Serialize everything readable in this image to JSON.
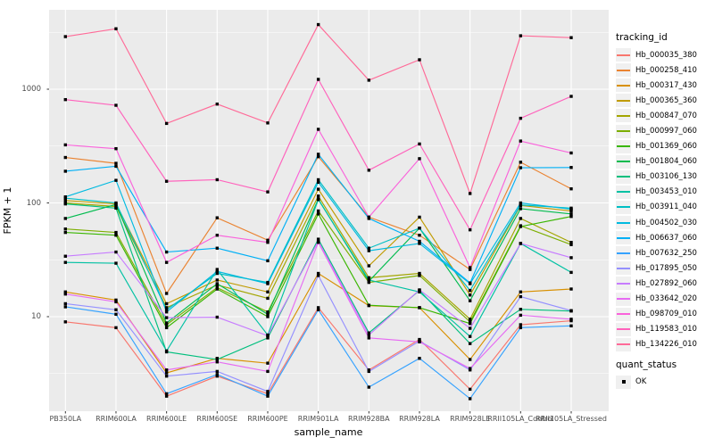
{
  "figure": {
    "background": "#FFFFFF",
    "panel_bg": "#EBEBEB",
    "grid_color": "#FFFFFF",
    "tick_color": "#333333",
    "tick_label_color": "#4D4D4D",
    "point_color": "#000000"
  },
  "chart_data": {
    "type": "line",
    "title": "",
    "xlabel": "sample_name",
    "ylabel": "FPKM + 1",
    "y_scale": "log10",
    "y_major_ticks": [
      10,
      100,
      1000
    ],
    "y_minor_ticks": [
      3.162,
      31.62,
      316.2,
      3162
    ],
    "ylim": [
      1.45,
      5100
    ],
    "grid": true,
    "legend_position": "right",
    "categories": [
      "PB350LA",
      "RRIM600LA",
      "RRIM600LE",
      "RRIM600SE",
      "RRIM600PE",
      "RRIM901LA",
      "RRIM928BA",
      "RRIM928LA",
      "RRIM928LE",
      "RRII105LA_Control",
      "RRII105LA_Stressed"
    ],
    "series": [
      {
        "name": "Hb_000035_380",
        "color": "#F8766D",
        "values": [
          9,
          8,
          2.0,
          3.0,
          2.1,
          12,
          3.4,
          6.3,
          2.3,
          8.5,
          9.2
        ]
      },
      {
        "name": "Hb_000258_410",
        "color": "#EA8331",
        "values": [
          251,
          223,
          16,
          74,
          47,
          255,
          75,
          52,
          26,
          228,
          133
        ]
      },
      {
        "name": "Hb_000317_430",
        "color": "#D89000",
        "values": [
          16.5,
          14,
          3.2,
          4.3,
          3.9,
          24,
          12.5,
          12,
          4.2,
          16.5,
          17.5
        ]
      },
      {
        "name": "Hb_000365_360",
        "color": "#C09B00",
        "values": [
          105,
          98,
          13,
          21,
          16.5,
          132,
          28,
          75,
          15.5,
          95,
          85
        ]
      },
      {
        "name": "Hb_000847_070",
        "color": "#A3A500",
        "values": [
          100,
          93,
          12,
          19,
          14.5,
          115,
          22,
          24,
          9.5,
          73,
          45
        ]
      },
      {
        "name": "Hb_000997_060",
        "color": "#7CAE00",
        "values": [
          59,
          55,
          8.5,
          18,
          11,
          85,
          20,
          23,
          9.0,
          63,
          43
        ]
      },
      {
        "name": "Hb_001369_060",
        "color": "#39B600",
        "values": [
          55,
          52,
          8.0,
          17.5,
          10,
          80,
          12.6,
          12,
          8.7,
          62,
          76
        ]
      },
      {
        "name": "Hb_001804_060",
        "color": "#00BB4E",
        "values": [
          73,
          97,
          8.8,
          19.5,
          10.5,
          108,
          20.5,
          60,
          13.8,
          89,
          80
        ]
      },
      {
        "name": "Hb_003106_130",
        "color": "#00BF7D",
        "values": [
          98,
          90,
          4.9,
          4.2,
          6.5,
          48,
          7.2,
          17,
          5.8,
          11.6,
          11.2
        ]
      },
      {
        "name": "Hb_003453_010",
        "color": "#00C1A3",
        "values": [
          30,
          29.5,
          5.0,
          26,
          6.9,
          107,
          21,
          16.5,
          6.7,
          44,
          24.5
        ]
      },
      {
        "name": "Hb_003911_040",
        "color": "#00BFC4",
        "values": [
          110,
          100,
          11.5,
          24,
          20,
          160,
          40,
          60,
          17,
          96,
          90
        ]
      },
      {
        "name": "Hb_004502_030",
        "color": "#00BAE0",
        "values": [
          113,
          158,
          11,
          25,
          19.5,
          152,
          38,
          44,
          19.5,
          100,
          88
        ]
      },
      {
        "name": "Hb_006637_060",
        "color": "#00B0F6",
        "values": [
          190,
          210,
          37,
          40,
          31,
          268,
          73,
          46,
          19.8,
          204,
          205
        ]
      },
      {
        "name": "Hb_007632_250",
        "color": "#35A2FF",
        "values": [
          12.2,
          10.5,
          2.1,
          3.1,
          2.0,
          11.5,
          2.4,
          4.3,
          1.9,
          8.0,
          8.3
        ]
      },
      {
        "name": "Hb_017895_050",
        "color": "#9590FF",
        "values": [
          13,
          11.5,
          3.0,
          3.3,
          2.2,
          23,
          3.3,
          6.1,
          3.4,
          15,
          11.3
        ]
      },
      {
        "name": "Hb_027892_060",
        "color": "#C77CFF",
        "values": [
          34,
          37,
          9.8,
          9.9,
          6.8,
          46,
          6.9,
          17.2,
          7.9,
          44,
          33
        ]
      },
      {
        "name": "Hb_033642_020",
        "color": "#E76BF3",
        "values": [
          15.8,
          13.5,
          3.4,
          4.0,
          3.3,
          45,
          6.5,
          6.0,
          3.5,
          10.3,
          9.5
        ]
      },
      {
        "name": "Hb_098709_010",
        "color": "#FA62DB",
        "values": [
          324,
          300,
          30,
          52,
          45,
          444,
          75,
          245,
          27,
          350,
          275
        ]
      },
      {
        "name": "Hb_119583_010",
        "color": "#FF62BC",
        "values": [
          810,
          722,
          155,
          160,
          125,
          1220,
          194,
          330,
          58,
          555,
          865
        ]
      },
      {
        "name": "Hb_134226_010",
        "color": "#FF6A98",
        "values": [
          2900,
          3400,
          500,
          740,
          505,
          3700,
          1200,
          1815,
          121,
          2950,
          2840
        ]
      }
    ],
    "legend": {
      "color_title": "tracking_id",
      "shape_title": "quant_status",
      "shape_items": [
        "OK"
      ]
    }
  }
}
